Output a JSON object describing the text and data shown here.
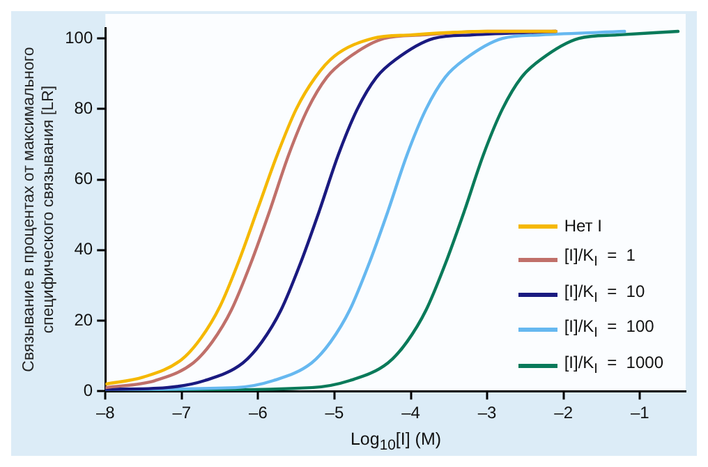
{
  "chart_data": {
    "type": "line",
    "xlabel": "Log$_{10}$[I] (M)",
    "ylabel": "Связывание в процентах от максимального специфического связывания [LR]",
    "xlim": [
      -8,
      -0.4
    ],
    "xticks": [
      {
        "value": -8,
        "label": "–8"
      },
      {
        "value": -7,
        "label": "–7"
      },
      {
        "value": -6,
        "label": "–6"
      },
      {
        "value": -5,
        "label": "–5"
      },
      {
        "value": -4,
        "label": "–4"
      },
      {
        "value": -3,
        "label": "–3"
      },
      {
        "value": -2,
        "label": "–2"
      },
      {
        "value": -1,
        "label": "–1"
      }
    ],
    "ylim": [
      0,
      103
    ],
    "yticks": [
      0,
      20,
      40,
      60,
      80,
      100
    ],
    "legend": "bottom right",
    "marker": "none",
    "line_style": "solid",
    "series": [
      {
        "name": "Нет I",
        "color": "#f5b800",
        "x": [
          -8,
          -7.5,
          -7,
          -6.75,
          -6.5,
          -6.25,
          -6,
          -5.75,
          -5.5,
          -5.25,
          -5,
          -4.5,
          -4,
          -3,
          -2.1
        ],
        "values": [
          2,
          4,
          9,
          15,
          24,
          37,
          52,
          67,
          80,
          89,
          95,
          100,
          101,
          102,
          102
        ]
      },
      {
        "name": "[I]/K$_{I}$  =  1",
        "color": "#c0706a",
        "x": [
          -8,
          -7.35,
          -6.85,
          -6.6,
          -6.35,
          -6.1,
          -5.85,
          -5.6,
          -5.35,
          -5.1,
          -4.85,
          -4.35,
          -3.85,
          -3,
          -2.1
        ],
        "values": [
          1,
          3,
          8,
          14,
          23,
          36,
          51,
          67,
          80,
          89,
          94,
          100,
          101,
          102,
          102
        ]
      },
      {
        "name": "[I]/K$_{I}$  =  10",
        "color": "#1a1a80",
        "x": [
          -8,
          -7.2,
          -6.7,
          -6.2,
          -5.95,
          -5.7,
          -5.45,
          -5.2,
          -4.95,
          -4.7,
          -4.45,
          -4.2,
          -3.7,
          -3.2,
          -2.1
        ],
        "values": [
          0.5,
          1,
          3,
          8,
          14,
          23,
          36,
          51,
          67,
          80,
          89,
          94,
          100,
          101,
          102
        ]
      },
      {
        "name": "[I]/K$_{I}$  =  100",
        "color": "#66b8f0",
        "x": [
          -8,
          -6.3,
          -5.8,
          -5.3,
          -5.05,
          -4.8,
          -4.55,
          -4.3,
          -4.05,
          -3.8,
          -3.55,
          -3.3,
          -2.8,
          -2.3,
          -1.2
        ],
        "values": [
          0.5,
          1,
          3,
          8,
          14,
          23,
          36,
          51,
          67,
          80,
          89,
          94,
          100,
          101,
          102
        ]
      },
      {
        "name": "[I]/K$_{I}$  =  1000",
        "color": "#0a7a5a",
        "x": [
          -8,
          -5.3,
          -4.8,
          -4.3,
          -4.05,
          -3.8,
          -3.55,
          -3.3,
          -3.05,
          -2.8,
          -2.55,
          -2.3,
          -1.8,
          -1.3,
          -0.5
        ],
        "values": [
          0,
          1,
          3,
          8,
          14,
          23,
          36,
          51,
          67,
          80,
          89,
          94,
          100,
          101,
          102
        ]
      }
    ]
  }
}
